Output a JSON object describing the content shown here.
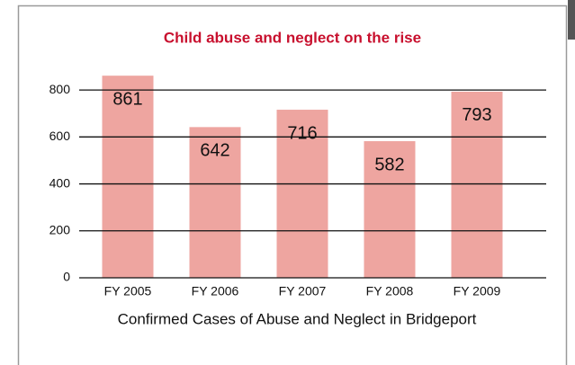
{
  "chart_data": {
    "type": "bar",
    "title": "Child abuse and neglect on the rise",
    "x_label": "Confirmed Cases of Abuse and Neglect in Bridgeport",
    "categories": [
      "FY 2005",
      "FY 2006",
      "FY 2007",
      "FY 2008",
      "FY 2009"
    ],
    "values": [
      861,
      642,
      716,
      582,
      793
    ],
    "color": "#eea5a0",
    "ylim": [
      0,
      900
    ],
    "yticks": [
      0,
      200,
      400,
      600,
      800
    ],
    "grid": true
  }
}
